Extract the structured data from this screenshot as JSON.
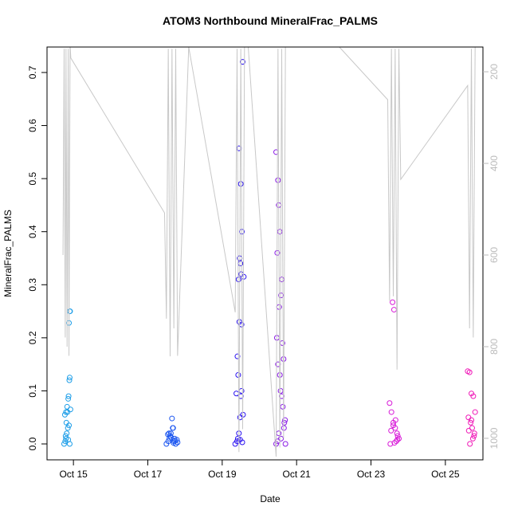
{
  "chart_data": {
    "type": "scatter",
    "title": "ATOM3 Northbound MineralFrac_PALMS",
    "x_label": "Date",
    "y_label": "MineralFrac_PALMS",
    "xlim": [
      14.29,
      26.01
    ],
    "xticks": [
      {
        "value": 15,
        "label": "Oct 15"
      },
      {
        "value": 17,
        "label": "Oct 17"
      },
      {
        "value": 19,
        "label": "Oct 19"
      },
      {
        "value": 21,
        "label": "Oct 21"
      },
      {
        "value": 23,
        "label": "Oct 23"
      },
      {
        "value": 25,
        "label": "Oct 25"
      }
    ],
    "ylim": [
      -0.03,
      0.748
    ],
    "yticks": [
      {
        "value": 0,
        "label": "0.0"
      },
      0.1,
      0.2,
      0.3,
      0.4,
      0.5,
      0.6,
      0.7
    ],
    "y2lim": [
      1047,
      146
    ],
    "y2ticks": [
      200,
      400,
      600,
      800,
      1000
    ],
    "y2color": "#bbbbbb",
    "series": [
      {
        "color": "#1e9ee8",
        "x": [
          14.75,
          14.78,
          14.8,
          14.82,
          14.85,
          14.88,
          14.9,
          14.77,
          14.8,
          14.83,
          14.86,
          14.87,
          14.89,
          14.9,
          14.92,
          14.84,
          14.88,
          14.9,
          14.79,
          14.81,
          14.86,
          14.91
        ],
        "values": [
          0,
          0.005,
          0.01,
          0.02,
          0.03,
          0.035,
          0,
          0.055,
          0.06,
          0.07,
          0.085,
          0.09,
          0.12,
          0.125,
          0.065,
          0.06,
          0.228,
          0.25,
          0.015,
          0.04,
          0.008,
          0.25
        ]
      },
      {
        "color": "#1a55f0",
        "x": [
          17.5,
          17.55,
          17.58,
          17.6,
          17.62,
          17.65,
          17.68,
          17.7,
          17.72,
          17.75,
          17.78,
          17.8,
          17.57,
          17.63,
          17.67,
          17.73,
          17.54,
          17.69
        ],
        "values": [
          0,
          0.005,
          0.01,
          0.015,
          0.02,
          0.048,
          0.03,
          0.005,
          0.01,
          0,
          0.008,
          0.003,
          0.02,
          0.012,
          0.03,
          0.006,
          0.018,
          0.002
        ]
      },
      {
        "color": "#2a12f0",
        "x": [
          19.35,
          19.4,
          19.42,
          19.45,
          19.48,
          19.5,
          19.52,
          19.55,
          19.58,
          19.45,
          19.5,
          19.53,
          19.47,
          19.49,
          19.51,
          19.44,
          19.46,
          19.52,
          19.41,
          19.43,
          19.56,
          19.38,
          19.48,
          19.54
        ],
        "values": [
          0,
          0.005,
          0.01,
          0.02,
          0.05,
          0.09,
          0.1,
          0.72,
          0.315,
          0.557,
          0.49,
          0.4,
          0.35,
          0.34,
          0.32,
          0.31,
          0.23,
          0.225,
          0.165,
          0.13,
          0.055,
          0.095,
          0.008,
          0.003
        ]
      },
      {
        "color": "#8a1ae6",
        "x": [
          20.45,
          20.5,
          20.52,
          20.55,
          20.48,
          20.6,
          20.58,
          20.53,
          20.47,
          20.62,
          20.65,
          20.5,
          20.55,
          20.57,
          20.6,
          20.63,
          20.67,
          20.7,
          20.52,
          20.45,
          20.58,
          20.66,
          20.69,
          20.49
        ],
        "values": [
          0.55,
          0.497,
          0.45,
          0.4,
          0.36,
          0.31,
          0.28,
          0.258,
          0.2,
          0.19,
          0.16,
          0.15,
          0.13,
          0.1,
          0.09,
          0.07,
          0.04,
          0,
          0.02,
          0,
          0.01,
          0.03,
          0.045,
          0.005
        ]
      },
      {
        "color": "#d81ad8",
        "x": [
          23.5,
          23.55,
          23.6,
          23.65,
          23.7,
          23.75,
          23.52,
          23.58,
          23.62,
          23.68,
          23.72,
          23.54,
          23.6,
          23.66,
          23.71,
          23.63
        ],
        "values": [
          0.077,
          0.06,
          0.04,
          0.03,
          0.02,
          0.01,
          0,
          0.267,
          0.253,
          0.005,
          0.015,
          0.025,
          0.035,
          0.045,
          0.008,
          0.002
        ]
      },
      {
        "color": "#f01ab8",
        "x": [
          25.6,
          25.65,
          25.7,
          25.75,
          25.8,
          25.62,
          25.68,
          25.72,
          25.78,
          25.66,
          25.74,
          25.63,
          25.7,
          25.77
        ],
        "values": [
          0.137,
          0.135,
          0.095,
          0.09,
          0.06,
          0.05,
          0.04,
          0.03,
          0.02,
          0,
          0.01,
          0.025,
          0.045,
          0.015
        ]
      },
      {
        "color": "#c8c8c8",
        "line": true,
        "axis": "y2",
        "x": [
          14.72,
          14.75,
          14.78,
          14.8,
          14.83,
          14.86,
          14.88,
          14.91,
          14.93,
          17.45,
          17.5,
          17.55,
          17.6,
          17.65,
          17.7,
          17.75,
          17.8,
          18.1,
          19.35,
          19.4,
          19.45,
          19.5,
          19.55,
          19.6,
          19.7,
          20.45,
          20.5,
          20.55,
          20.6,
          20.65,
          20.7,
          22.15,
          23.45,
          23.5,
          23.55,
          23.6,
          23.65,
          23.7,
          23.75,
          23.8,
          25.6,
          25.65,
          25.7,
          25.75,
          25.8
        ],
        "values": [
          600,
          150,
          780,
          150,
          800,
          150,
          820,
          140,
          170,
          508,
          739,
          150,
          821,
          150,
          760,
          150,
          820,
          146,
          725,
          150,
          1030,
          150,
          980,
          140,
          146,
          1040,
          150,
          1020,
          150,
          1000,
          146,
          146,
          261,
          700,
          150,
          690,
          150,
          850,
          150,
          435,
          230,
          760,
          150,
          780,
          146
        ]
      }
    ]
  }
}
